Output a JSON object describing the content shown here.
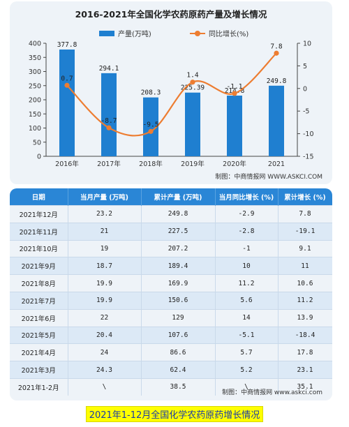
{
  "chart_data": {
    "type": "bar+line",
    "title": "2016-2021年全国化学农药原药产量及增长情况",
    "categories": [
      "2016年",
      "2017年",
      "2018年",
      "2019年",
      "2020年",
      "2021"
    ],
    "series": [
      {
        "name": "产量(万吨)",
        "type": "bar",
        "axis": "left",
        "values": [
          377.8,
          294.1,
          208.3,
          225.39,
          214.8,
          249.8
        ],
        "labels": [
          "377.8",
          "294.1",
          "208.3",
          "225.39",
          "214.8",
          "249.8"
        ]
      },
      {
        "name": "同比增长(%)",
        "type": "line",
        "axis": "right",
        "values": [
          0.7,
          -8.7,
          -9.5,
          1.4,
          -1.1,
          7.8
        ],
        "labels": [
          "0.7",
          "-8.7",
          "-9.5",
          "1.4",
          "-1.1",
          "7.8"
        ]
      }
    ],
    "y_left": {
      "min": 0,
      "max": 400,
      "ticks": [
        0,
        50,
        100,
        150,
        200,
        250,
        300,
        350,
        400
      ]
    },
    "y_right": {
      "min": -15,
      "max": 10,
      "ticks": [
        -15,
        -10,
        -5,
        0,
        5,
        10
      ]
    },
    "legend": "top-center",
    "grid": false,
    "colors": {
      "bar": "#1f7fd0",
      "line": "#ed7d31",
      "panel": "#eef3f8"
    },
    "source": "制图：中商情报网 WWW.ASKCI.COM"
  },
  "table": {
    "headers": [
      "日期",
      "当月产量 (万吨)",
      "累计产量 (万吨)",
      "当月同比增长 (%)",
      "累计增长 (%)"
    ],
    "rows": [
      [
        "2021年12月",
        "23.2",
        "249.8",
        "-2.9",
        "7.8"
      ],
      [
        "2021年11月",
        "21",
        "227.5",
        "-2.8",
        "-19.1"
      ],
      [
        "2021年10月",
        "19",
        "207.2",
        "-1",
        "9.1"
      ],
      [
        "2021年9月",
        "18.7",
        "189.4",
        "10",
        "11"
      ],
      [
        "2021年8月",
        "19.9",
        "169.9",
        "11.2",
        "10.6"
      ],
      [
        "2021年7月",
        "19.9",
        "150.6",
        "5.6",
        "11.2"
      ],
      [
        "2021年6月",
        "22",
        "129",
        "14",
        "13.9"
      ],
      [
        "2021年5月",
        "20.4",
        "107.6",
        "-5.1",
        "-18.4"
      ],
      [
        "2021年4月",
        "24",
        "86.6",
        "5.7",
        "17.8"
      ],
      [
        "2021年3月",
        "24.3",
        "62.4",
        "5.2",
        "23.1"
      ],
      [
        "2021年1-2月",
        "\\",
        "38.5",
        "\\",
        "35.1"
      ]
    ],
    "source": "制图：中商情报网 www.askci.com",
    "header_color": "#2a86d6"
  },
  "caption": "2021年1-12月全国化学农药原药增长情况"
}
